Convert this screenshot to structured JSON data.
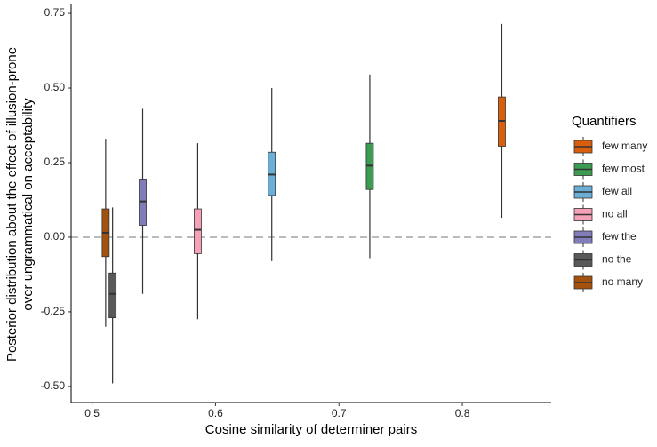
{
  "chart_data": {
    "type": "box",
    "xlabel": "Cosine similarity of determiner pairs",
    "ylabel": [
      "Posterior distribution about the effect of illusion-prone",
      "over ungrammatical on acceptability"
    ],
    "legend_title": "Quantifiers",
    "legend": "right",
    "hline": 0,
    "xlim": [
      0.483,
      0.872
    ],
    "ylim": [
      -0.554,
      0.78
    ],
    "xticks": [
      0.5,
      0.6,
      0.7,
      0.8
    ],
    "yticks": [
      {
        "value": 0.75,
        "label": "0.75"
      },
      {
        "value": 0.5,
        "label": "0.50"
      },
      {
        "value": 0.25,
        "label": "0.25"
      },
      {
        "value": 0,
        "label": "0.00"
      },
      {
        "value": -0.25,
        "label": "-0.25"
      },
      {
        "value": -0.5,
        "label": "-0.50"
      }
    ],
    "series": [
      {
        "name": "few many",
        "color": "#d95f0e",
        "x": 0.832,
        "whisker_low": 0.065,
        "q1": 0.305,
        "median": 0.39,
        "q3": 0.47,
        "whisker_high": 0.715
      },
      {
        "name": "few most",
        "color": "#3c9d52",
        "x": 0.725,
        "whisker_low": -0.07,
        "q1": 0.16,
        "median": 0.24,
        "q3": 0.315,
        "whisker_high": 0.545
      },
      {
        "name": "few all",
        "color": "#6baed6",
        "x": 0.6456,
        "whisker_low": -0.08,
        "q1": 0.14,
        "median": 0.21,
        "q3": 0.285,
        "whisker_high": 0.5
      },
      {
        "name": "no all",
        "color": "#f7a1b8",
        "x": 0.5856,
        "whisker_low": -0.275,
        "q1": -0.055,
        "median": 0.025,
        "q3": 0.095,
        "whisker_high": 0.315
      },
      {
        "name": "few the",
        "color": "#807dba",
        "x": 0.541,
        "whisker_low": -0.19,
        "q1": 0.04,
        "median": 0.12,
        "q3": 0.195,
        "whisker_high": 0.43
      },
      {
        "name": "no the",
        "color": "#595959",
        "x": 0.5166,
        "whisker_low": -0.49,
        "q1": -0.27,
        "median": -0.19,
        "q3": -0.12,
        "whisker_high": 0.1
      },
      {
        "name": "no many",
        "color": "#a6520f",
        "x": 0.511,
        "whisker_low": -0.3,
        "q1": -0.065,
        "median": 0.015,
        "q3": 0.095,
        "whisker_high": 0.33
      }
    ]
  }
}
